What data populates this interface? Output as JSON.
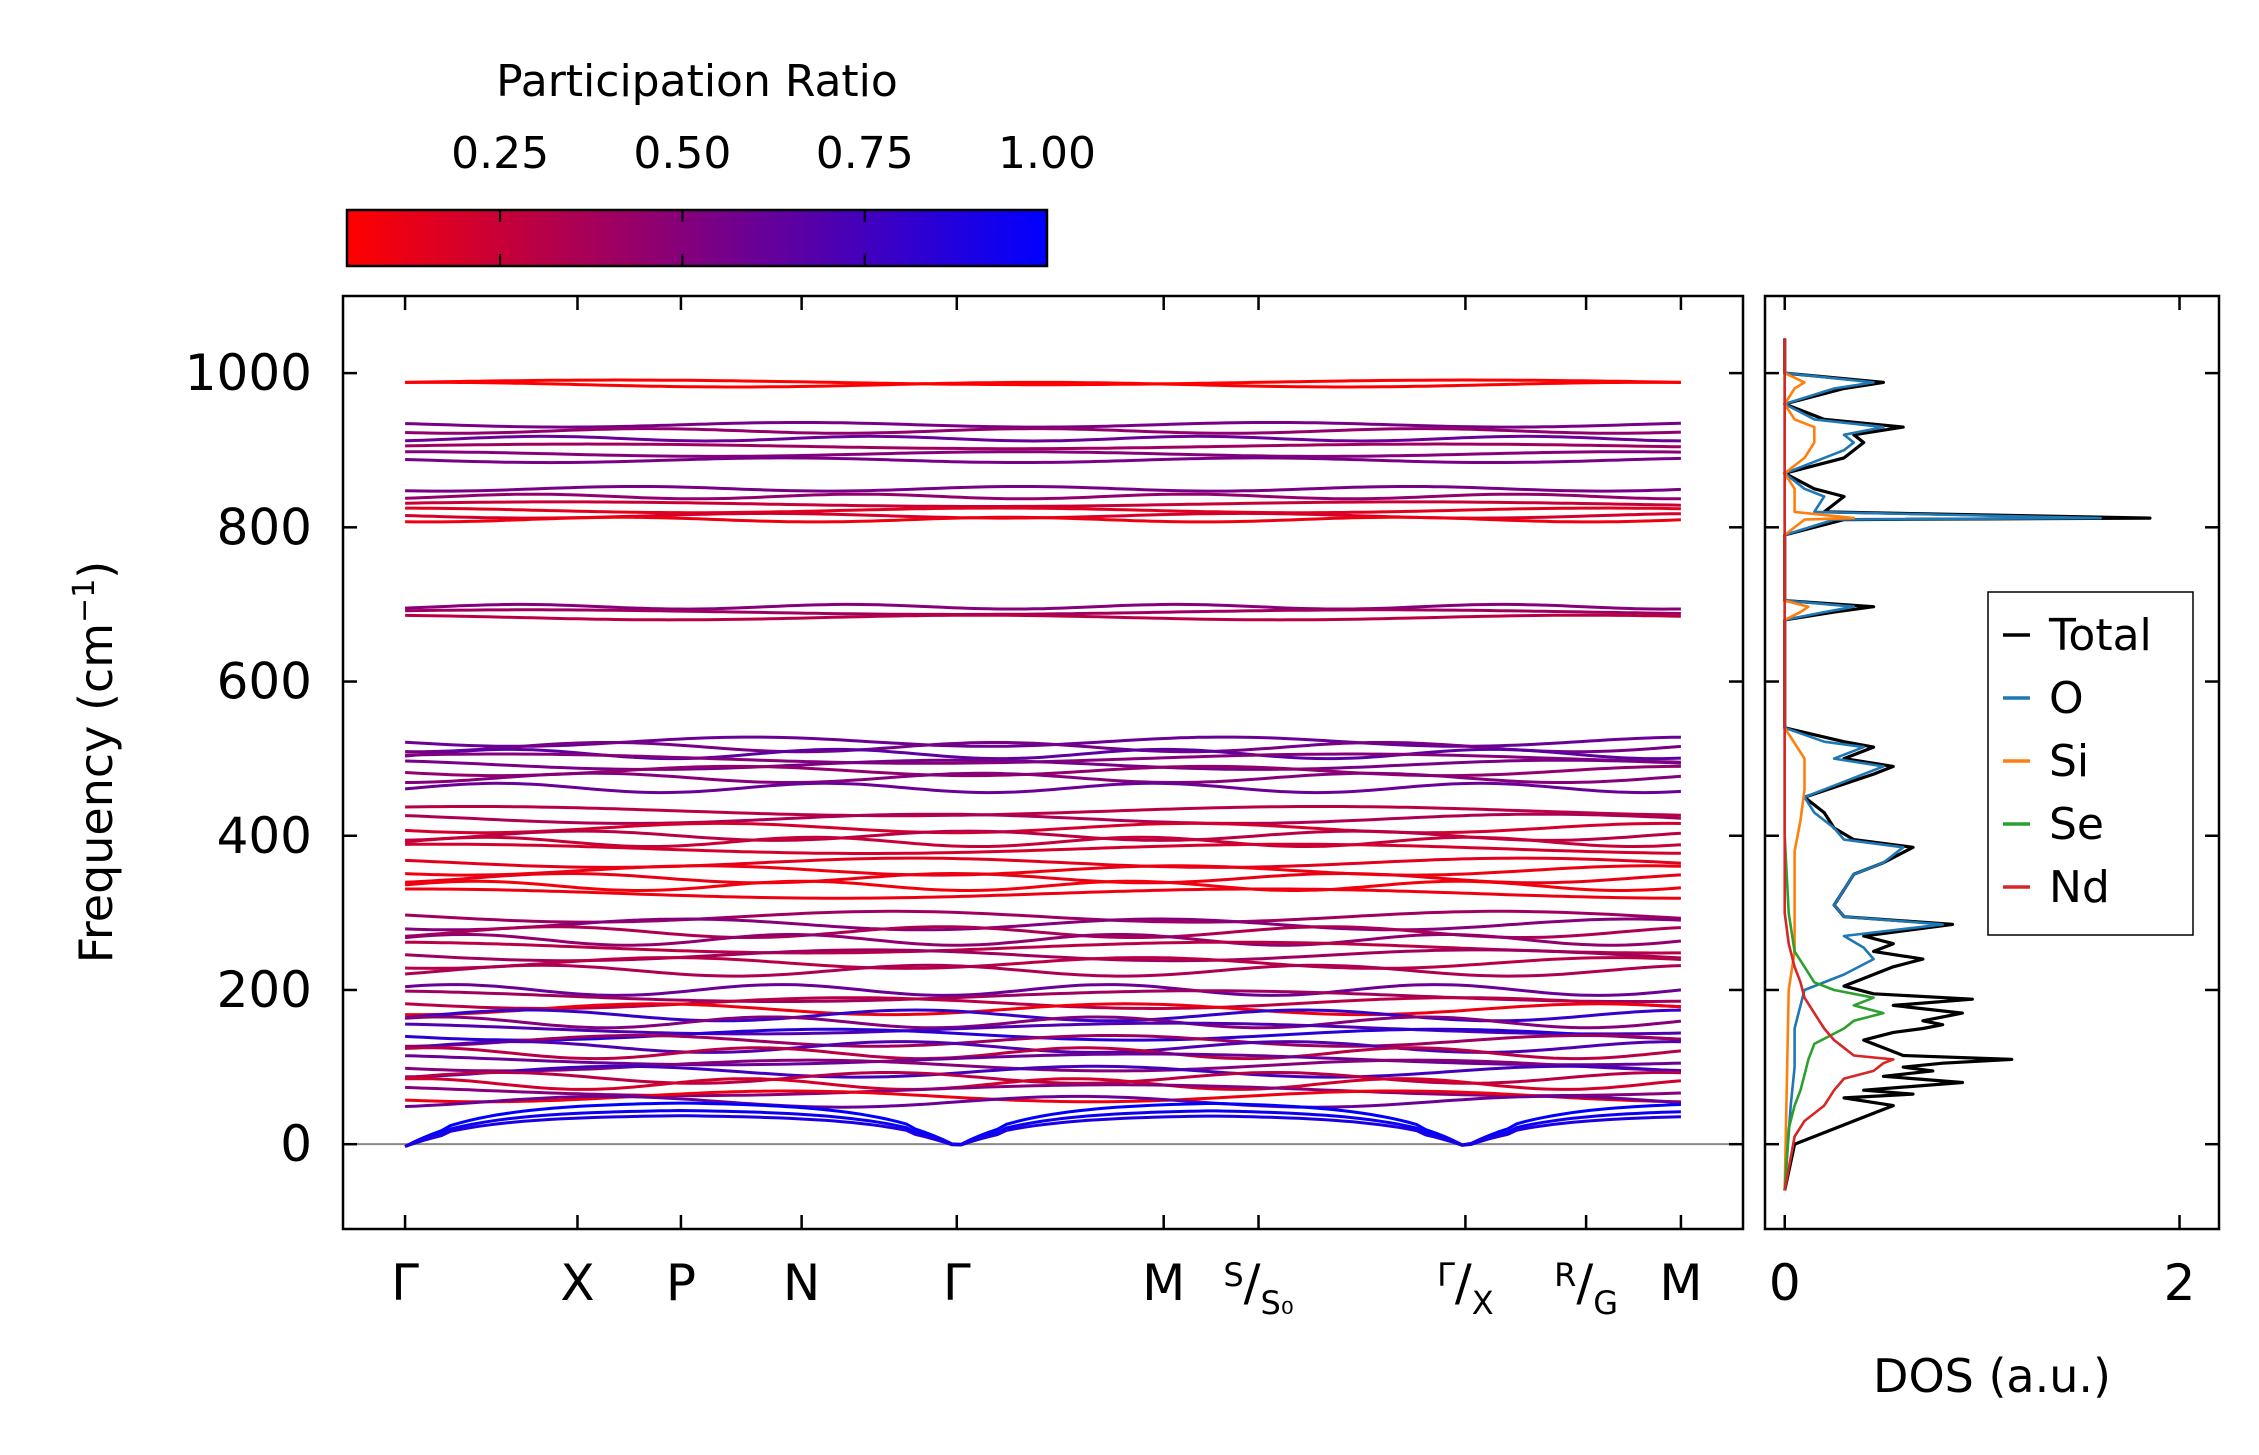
{
  "chart_data": [
    {
      "type": "line",
      "name": "phonon-band-structure",
      "ylabel": "Frequency (cm⁻¹)",
      "ylabel_parts": [
        "Frequency (cm",
        "−1",
        ")"
      ],
      "ylim": [
        -110,
        1100
      ],
      "yticks": [
        0,
        200,
        400,
        600,
        800,
        1000
      ],
      "xticks": [
        {
          "pos": 0.0,
          "main": "Γ"
        },
        {
          "pos": 1.0,
          "main": "X"
        },
        {
          "pos": 1.6,
          "main": "P"
        },
        {
          "pos": 2.3,
          "main": "N"
        },
        {
          "pos": 3.2,
          "main": "Γ"
        },
        {
          "pos": 4.4,
          "main": "M"
        },
        {
          "pos": 4.95,
          "sup": "S",
          "sub": "S₀"
        },
        {
          "pos": 6.15,
          "sup": "Γ",
          "sub": "X"
        },
        {
          "pos": 6.85,
          "sup": "R",
          "sub": "G"
        },
        {
          "pos": 7.4,
          "main": "M"
        }
      ],
      "xlim": [
        -0.36,
        7.76
      ],
      "zero_line": 0,
      "bands_approx": [
        {
          "freq": 988,
          "pr": 0.02
        },
        {
          "freq": 985,
          "pr": 0.05
        },
        {
          "freq": 933,
          "pr": 0.55
        },
        {
          "freq": 925,
          "pr": 0.45
        },
        {
          "freq": 915,
          "pr": 0.6
        },
        {
          "freq": 905,
          "pr": 0.4
        },
        {
          "freq": 895,
          "pr": 0.5
        },
        {
          "freq": 887,
          "pr": 0.55
        },
        {
          "freq": 850,
          "pr": 0.55
        },
        {
          "freq": 840,
          "pr": 0.45
        },
        {
          "freq": 830,
          "pr": 0.25
        },
        {
          "freq": 822,
          "pr": 0.15
        },
        {
          "freq": 815,
          "pr": 0.2
        },
        {
          "freq": 810,
          "pr": 0.1
        },
        {
          "freq": 697,
          "pr": 0.5
        },
        {
          "freq": 690,
          "pr": 0.4
        },
        {
          "freq": 683,
          "pr": 0.3
        },
        {
          "freq": 522,
          "pr": 0.6
        },
        {
          "freq": 515,
          "pr": 0.55
        },
        {
          "freq": 506,
          "pr": 0.65
        },
        {
          "freq": 500,
          "pr": 0.5
        },
        {
          "freq": 492,
          "pr": 0.55
        },
        {
          "freq": 484,
          "pr": 0.45
        },
        {
          "freq": 475,
          "pr": 0.5
        },
        {
          "freq": 462,
          "pr": 0.6
        },
        {
          "freq": 432,
          "pr": 0.3
        },
        {
          "freq": 422,
          "pr": 0.35
        },
        {
          "freq": 410,
          "pr": 0.2
        },
        {
          "freq": 400,
          "pr": 0.3
        },
        {
          "freq": 392,
          "pr": 0.25
        },
        {
          "freq": 383,
          "pr": 0.2
        },
        {
          "freq": 365,
          "pr": 0.15
        },
        {
          "freq": 355,
          "pr": 0.1
        },
        {
          "freq": 345,
          "pr": 0.12
        },
        {
          "freq": 335,
          "pr": 0.08
        },
        {
          "freq": 325,
          "pr": 0.1
        },
        {
          "freq": 295,
          "pr": 0.4
        },
        {
          "freq": 285,
          "pr": 0.5
        },
        {
          "freq": 275,
          "pr": 0.35
        },
        {
          "freq": 265,
          "pr": 0.45
        },
        {
          "freq": 255,
          "pr": 0.3
        },
        {
          "freq": 245,
          "pr": 0.4
        },
        {
          "freq": 235,
          "pr": 0.3
        },
        {
          "freq": 225,
          "pr": 0.35
        },
        {
          "freq": 200,
          "pr": 0.6
        },
        {
          "freq": 192,
          "pr": 0.4
        },
        {
          "freq": 183,
          "pr": 0.3
        },
        {
          "freq": 175,
          "pr": 0.1
        },
        {
          "freq": 167,
          "pr": 0.8
        },
        {
          "freq": 158,
          "pr": 0.5
        },
        {
          "freq": 150,
          "pr": 0.7
        },
        {
          "freq": 142,
          "pr": 0.85
        },
        {
          "freq": 134,
          "pr": 0.4
        },
        {
          "freq": 126,
          "pr": 0.7
        },
        {
          "freq": 118,
          "pr": 0.3
        },
        {
          "freq": 110,
          "pr": 0.6
        },
        {
          "freq": 102,
          "pr": 0.5
        },
        {
          "freq": 94,
          "pr": 0.75
        },
        {
          "freq": 86,
          "pr": 0.3
        },
        {
          "freq": 78,
          "pr": 0.2
        },
        {
          "freq": 70,
          "pr": 0.5
        },
        {
          "freq": 62,
          "pr": 0.1
        },
        {
          "freq": 55,
          "pr": 0.6
        }
      ],
      "acoustic_approx": [
        {
          "freq": 55,
          "pr": 1.0
        },
        {
          "freq": 45,
          "pr": 0.95
        },
        {
          "freq": 38,
          "pr": 0.9
        }
      ]
    },
    {
      "type": "line",
      "name": "density-of-states",
      "xlabel": "DOS (a.u.)",
      "xticks": [
        0,
        2
      ],
      "xlim": [
        -0.1,
        2.2
      ],
      "ylim": [
        -110,
        1100
      ],
      "legend_position": "center-right",
      "series": [
        {
          "name": "Total",
          "color": "#000000",
          "points": [
            [
              -60,
              0
            ],
            [
              0,
              0.05
            ],
            [
              10,
              0.15
            ],
            [
              20,
              0.25
            ],
            [
              30,
              0.35
            ],
            [
              40,
              0.45
            ],
            [
              50,
              0.55
            ],
            [
              60,
              0.3
            ],
            [
              65,
              0.65
            ],
            [
              70,
              0.4
            ],
            [
              80,
              0.9
            ],
            [
              88,
              0.5
            ],
            [
              95,
              0.75
            ],
            [
              100,
              0.6
            ],
            [
              105,
              0.8
            ],
            [
              110,
              1.15
            ],
            [
              115,
              0.6
            ],
            [
              125,
              0.5
            ],
            [
              135,
              0.4
            ],
            [
              145,
              0.55
            ],
            [
              150,
              0.7
            ],
            [
              155,
              0.8
            ],
            [
              160,
              0.7
            ],
            [
              170,
              0.9
            ],
            [
              180,
              0.55
            ],
            [
              188,
              0.95
            ],
            [
              195,
              0.45
            ],
            [
              205,
              0.3
            ],
            [
              220,
              0.45
            ],
            [
              230,
              0.55
            ],
            [
              240,
              0.7
            ],
            [
              250,
              0.45
            ],
            [
              260,
              0.55
            ],
            [
              270,
              0.4
            ],
            [
              285,
              0.85
            ],
            [
              295,
              0.3
            ],
            [
              310,
              0.25
            ],
            [
              330,
              0.3
            ],
            [
              350,
              0.35
            ],
            [
              365,
              0.5
            ],
            [
              385,
              0.65
            ],
            [
              395,
              0.35
            ],
            [
              410,
              0.25
            ],
            [
              430,
              0.2
            ],
            [
              450,
              0.1
            ],
            [
              480,
              0.45
            ],
            [
              490,
              0.55
            ],
            [
              500,
              0.3
            ],
            [
              515,
              0.45
            ],
            [
              522,
              0.3
            ],
            [
              540,
              0
            ],
            [
              680,
              0
            ],
            [
              690,
              0.25
            ],
            [
              697,
              0.45
            ],
            [
              705,
              0
            ],
            [
              790,
              0
            ],
            [
              810,
              0.3
            ],
            [
              812,
              1.85
            ],
            [
              820,
              0.2
            ],
            [
              840,
              0.3
            ],
            [
              850,
              0.15
            ],
            [
              870,
              0
            ],
            [
              890,
              0.3
            ],
            [
              900,
              0.35
            ],
            [
              910,
              0.4
            ],
            [
              920,
              0.35
            ],
            [
              930,
              0.6
            ],
            [
              940,
              0.2
            ],
            [
              960,
              0
            ],
            [
              980,
              0.3
            ],
            [
              988,
              0.5
            ],
            [
              1000,
              0
            ],
            [
              1045,
              0
            ]
          ]
        },
        {
          "name": "O",
          "color": "#1f77b4",
          "points": [
            [
              -60,
              0
            ],
            [
              50,
              0.03
            ],
            [
              100,
              0.05
            ],
            [
              150,
              0.05
            ],
            [
              180,
              0.08
            ],
            [
              200,
              0.1
            ],
            [
              220,
              0.3
            ],
            [
              240,
              0.45
            ],
            [
              255,
              0.4
            ],
            [
              270,
              0.3
            ],
            [
              285,
              0.8
            ],
            [
              295,
              0.3
            ],
            [
              310,
              0.25
            ],
            [
              330,
              0.3
            ],
            [
              350,
              0.35
            ],
            [
              365,
              0.5
            ],
            [
              385,
              0.6
            ],
            [
              395,
              0.3
            ],
            [
              410,
              0.25
            ],
            [
              430,
              0.15
            ],
            [
              450,
              0.1
            ],
            [
              480,
              0.4
            ],
            [
              490,
              0.5
            ],
            [
              500,
              0.25
            ],
            [
              515,
              0.4
            ],
            [
              522,
              0.2
            ],
            [
              540,
              0
            ],
            [
              680,
              0
            ],
            [
              690,
              0.2
            ],
            [
              697,
              0.35
            ],
            [
              705,
              0
            ],
            [
              790,
              0
            ],
            [
              810,
              0.25
            ],
            [
              812,
              1.6
            ],
            [
              820,
              0.15
            ],
            [
              840,
              0.2
            ],
            [
              850,
              0.1
            ],
            [
              870,
              0
            ],
            [
              890,
              0.2
            ],
            [
              900,
              0.3
            ],
            [
              910,
              0.35
            ],
            [
              920,
              0.3
            ],
            [
              930,
              0.5
            ],
            [
              940,
              0.15
            ],
            [
              960,
              0
            ],
            [
              980,
              0.25
            ],
            [
              988,
              0.45
            ],
            [
              1000,
              0
            ],
            [
              1045,
              0
            ]
          ]
        },
        {
          "name": "Si",
          "color": "#ff7f0e",
          "points": [
            [
              -60,
              0
            ],
            [
              200,
              0.02
            ],
            [
              250,
              0.05
            ],
            [
              300,
              0.05
            ],
            [
              380,
              0.05
            ],
            [
              420,
              0.08
            ],
            [
              460,
              0.1
            ],
            [
              500,
              0.1
            ],
            [
              520,
              0.05
            ],
            [
              540,
              0
            ],
            [
              680,
              0
            ],
            [
              690,
              0.08
            ],
            [
              697,
              0.12
            ],
            [
              705,
              0
            ],
            [
              790,
              0
            ],
            [
              810,
              0.1
            ],
            [
              812,
              0.35
            ],
            [
              820,
              0.05
            ],
            [
              850,
              0.05
            ],
            [
              870,
              0
            ],
            [
              890,
              0.1
            ],
            [
              910,
              0.15
            ],
            [
              930,
              0.15
            ],
            [
              940,
              0.05
            ],
            [
              960,
              0
            ],
            [
              980,
              0.05
            ],
            [
              988,
              0.1
            ],
            [
              1000,
              0
            ],
            [
              1045,
              0
            ]
          ]
        },
        {
          "name": "Se",
          "color": "#2ca02c",
          "points": [
            [
              -60,
              0
            ],
            [
              20,
              0.02
            ],
            [
              50,
              0.05
            ],
            [
              70,
              0.08
            ],
            [
              90,
              0.1
            ],
            [
              110,
              0.12
            ],
            [
              130,
              0.15
            ],
            [
              150,
              0.3
            ],
            [
              160,
              0.35
            ],
            [
              170,
              0.5
            ],
            [
              180,
              0.35
            ],
            [
              190,
              0.45
            ],
            [
              200,
              0.25
            ],
            [
              210,
              0.15
            ],
            [
              230,
              0.1
            ],
            [
              250,
              0.05
            ],
            [
              300,
              0.02
            ],
            [
              400,
              0
            ],
            [
              1045,
              0
            ]
          ]
        },
        {
          "name": "Nd",
          "color": "#d62728",
          "points": [
            [
              -60,
              0
            ],
            [
              10,
              0.05
            ],
            [
              30,
              0.1
            ],
            [
              50,
              0.2
            ],
            [
              70,
              0.25
            ],
            [
              85,
              0.3
            ],
            [
              95,
              0.45
            ],
            [
              105,
              0.5
            ],
            [
              110,
              0.55
            ],
            [
              115,
              0.35
            ],
            [
              125,
              0.3
            ],
            [
              135,
              0.25
            ],
            [
              150,
              0.2
            ],
            [
              170,
              0.15
            ],
            [
              190,
              0.1
            ],
            [
              210,
              0.08
            ],
            [
              230,
              0.05
            ],
            [
              260,
              0.02
            ],
            [
              300,
              0
            ],
            [
              1045,
              0
            ]
          ]
        }
      ]
    },
    {
      "type": "heatmap",
      "name": "colorbar",
      "title": "Participation Ratio",
      "ticks": [
        "0.25",
        "0.50",
        "0.75",
        "1.00"
      ],
      "tick_values": [
        0.25,
        0.5,
        0.75,
        1.0
      ],
      "range": [
        0.04,
        1.0
      ],
      "color_low": "#ff0000",
      "color_high": "#0000ff"
    }
  ]
}
